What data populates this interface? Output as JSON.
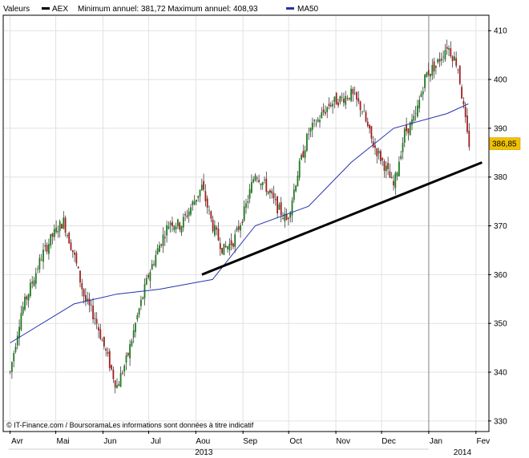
{
  "legend": {
    "valeurs_label": "Valeurs",
    "series_name": "AEX",
    "range_text": "Minimum annuel: 381,72 Maximum annuel: 408,93",
    "ma_label": "MA50"
  },
  "credit": "© IT-Finance.com / BoursoramaLes informations sont données à titre indicatif",
  "last_price_label": "386,85",
  "colors": {
    "up": "#1f7a1f",
    "down": "#a11f1f",
    "ma": "#2233aa",
    "trend": "#000000",
    "badge": "#f2c200",
    "grid": "#e2e2e2"
  },
  "chart_data": {
    "type": "candlestick",
    "title": "",
    "x_tick_labels": [
      "Avr",
      "Mai",
      "Jun",
      "Jul",
      "Aou",
      "Sep",
      "Oct",
      "Nov",
      "Dec",
      "Jan",
      "Fev"
    ],
    "year_labels": [
      "2013",
      "2014"
    ],
    "y_tick_labels": [
      "330",
      "340",
      "350",
      "360",
      "370",
      "380",
      "390",
      "400",
      "410"
    ],
    "ylim": [
      328,
      413
    ],
    "grid": true,
    "legend_position": "top",
    "last_price": 386.85,
    "closes_weekly": [
      {
        "week": "2013-04-01",
        "close": 340
      },
      {
        "week": "2013-04-08",
        "close": 352
      },
      {
        "week": "2013-04-15",
        "close": 358
      },
      {
        "week": "2013-04-22",
        "close": 364
      },
      {
        "week": "2013-04-29",
        "close": 368
      },
      {
        "week": "2013-05-06",
        "close": 371
      },
      {
        "week": "2013-05-13",
        "close": 364
      },
      {
        "week": "2013-05-20",
        "close": 355
      },
      {
        "week": "2013-05-27",
        "close": 351
      },
      {
        "week": "2013-06-03",
        "close": 344
      },
      {
        "week": "2013-06-10",
        "close": 337
      },
      {
        "week": "2013-06-17",
        "close": 343
      },
      {
        "week": "2013-06-24",
        "close": 352
      },
      {
        "week": "2013-07-01",
        "close": 360
      },
      {
        "week": "2013-07-08",
        "close": 366
      },
      {
        "week": "2013-07-15",
        "close": 371
      },
      {
        "week": "2013-07-22",
        "close": 370
      },
      {
        "week": "2013-07-29",
        "close": 374
      },
      {
        "week": "2013-08-05",
        "close": 378
      },
      {
        "week": "2013-08-12",
        "close": 370
      },
      {
        "week": "2013-08-19",
        "close": 365
      },
      {
        "week": "2013-08-26",
        "close": 367
      },
      {
        "week": "2013-09-02",
        "close": 373
      },
      {
        "week": "2013-09-09",
        "close": 381
      },
      {
        "week": "2013-09-16",
        "close": 378
      },
      {
        "week": "2013-09-23",
        "close": 374
      },
      {
        "week": "2013-09-30",
        "close": 371
      },
      {
        "week": "2013-10-07",
        "close": 381
      },
      {
        "week": "2013-10-14",
        "close": 389
      },
      {
        "week": "2013-10-21",
        "close": 392
      },
      {
        "week": "2013-10-28",
        "close": 395
      },
      {
        "week": "2013-11-04",
        "close": 396
      },
      {
        "week": "2013-11-11",
        "close": 397
      },
      {
        "week": "2013-11-18",
        "close": 394
      },
      {
        "week": "2013-11-25",
        "close": 387
      },
      {
        "week": "2013-12-02",
        "close": 383
      },
      {
        "week": "2013-12-09",
        "close": 378
      },
      {
        "week": "2013-12-16",
        "close": 389
      },
      {
        "week": "2013-12-23",
        "close": 392
      },
      {
        "week": "2013-12-30",
        "close": 401
      },
      {
        "week": "2014-01-06",
        "close": 403
      },
      {
        "week": "2014-01-13",
        "close": 407
      },
      {
        "week": "2014-01-20",
        "close": 403
      },
      {
        "week": "2014-01-27",
        "close": 386.85
      }
    ],
    "ma50": [
      {
        "week": "2013-04-01",
        "value": 346
      },
      {
        "week": "2013-05-13",
        "value": 354
      },
      {
        "week": "2013-06-10",
        "value": 356
      },
      {
        "week": "2013-07-08",
        "value": 357
      },
      {
        "week": "2013-08-12",
        "value": 359
      },
      {
        "week": "2013-09-09",
        "value": 370
      },
      {
        "week": "2013-10-14",
        "value": 374
      },
      {
        "week": "2013-11-11",
        "value": 383
      },
      {
        "week": "2013-12-09",
        "value": 390
      },
      {
        "week": "2014-01-13",
        "value": 393
      },
      {
        "week": "2014-01-27",
        "value": 395
      }
    ],
    "trendline": [
      {
        "week": "2013-08-05",
        "value": 360
      },
      {
        "week": "2014-02-05",
        "value": 383
      }
    ]
  }
}
